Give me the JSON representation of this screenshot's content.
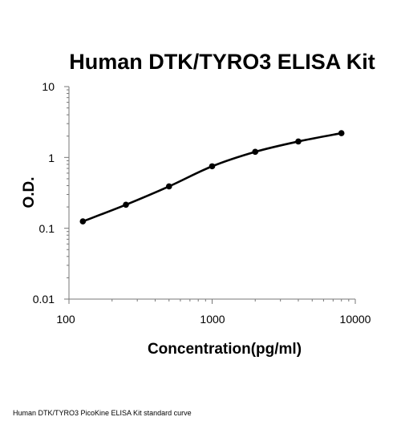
{
  "chart_data": {
    "type": "line",
    "title": "Human DTK/TYRO3 ELISA Kit",
    "xlabel": "Concentration(pg/ml)",
    "ylabel": "O.D.",
    "xscale": "log",
    "yscale": "log",
    "xlim": [
      100,
      10000
    ],
    "ylim": [
      0.01,
      10
    ],
    "x_tick_labels": [
      "100",
      "1000",
      "10000"
    ],
    "y_tick_labels": [
      "0.01",
      "0.1",
      "1",
      "10"
    ],
    "x": [
      125,
      250,
      500,
      1000,
      2000,
      4000,
      8000
    ],
    "values": [
      0.125,
      0.215,
      0.39,
      0.75,
      1.2,
      1.68,
      2.2
    ],
    "grid": false,
    "legend": "none",
    "line_color": "#000000",
    "marker": "filled-circle"
  },
  "caption": "Human DTK/TYRO3 PicoKine ELISA Kit standard curve"
}
